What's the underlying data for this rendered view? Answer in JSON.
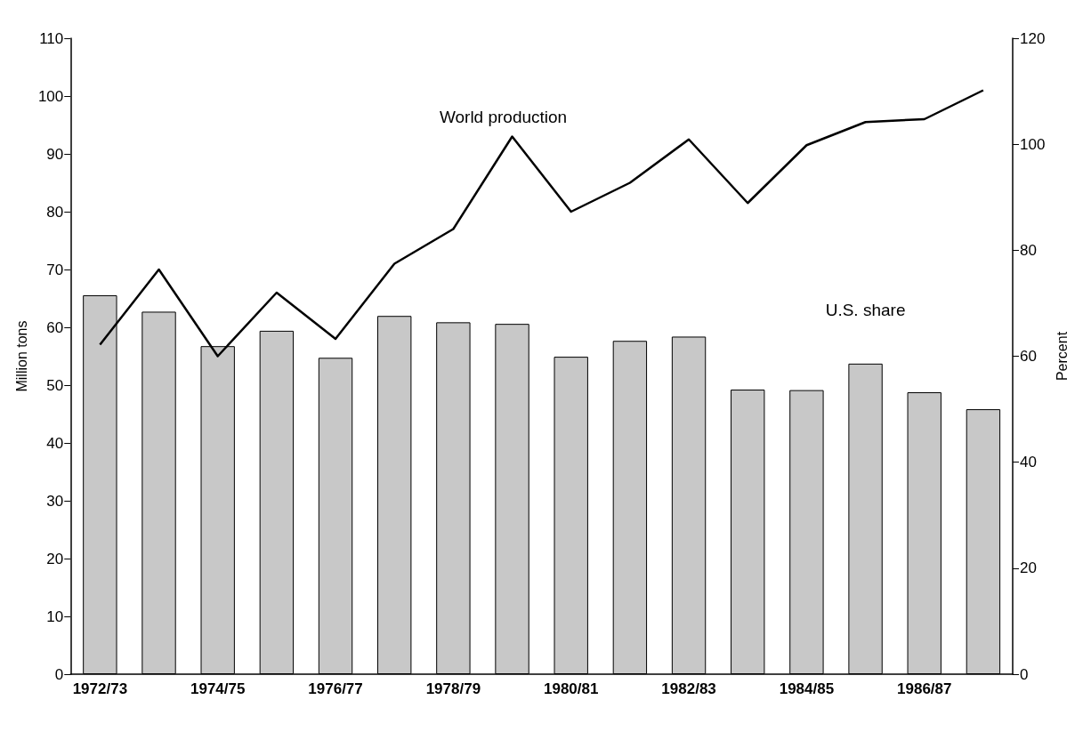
{
  "chart_data": {
    "type": "bar",
    "ylabel": "Million tons",
    "y2label": "Percent",
    "categories": [
      "1972/73",
      null,
      "1974/75",
      null,
      "1976/77",
      null,
      "1978/79",
      null,
      "1980/81",
      null,
      "1982/83",
      null,
      "1984/85",
      null,
      "1986/87",
      null
    ],
    "series": [
      {
        "name": "U.S. share",
        "axis": "y2",
        "color": "#c8c8c8",
        "values": [
          71.5,
          68.4,
          61.9,
          64.8,
          59.7,
          67.6,
          66.4,
          66.1,
          59.9,
          62.9,
          63.7,
          53.7,
          53.6,
          58.6,
          53.2,
          50.0
        ]
      },
      {
        "name": "World production",
        "type": "line",
        "color": "#000000",
        "values": [
          57,
          70,
          55,
          66,
          58,
          71,
          77,
          93,
          80,
          85,
          92.5,
          81.5,
          91.5,
          95.5,
          96,
          101
        ]
      }
    ],
    "ylim": [
      0,
      110
    ],
    "yticks": [
      0,
      10,
      20,
      30,
      40,
      50,
      60,
      70,
      80,
      90,
      100,
      110
    ],
    "y2lim": [
      0,
      120
    ],
    "y2ticks": [
      0,
      20,
      40,
      60,
      80,
      100,
      120
    ],
    "grid": false,
    "legend": false,
    "marker": "none",
    "line_style": "solid"
  }
}
